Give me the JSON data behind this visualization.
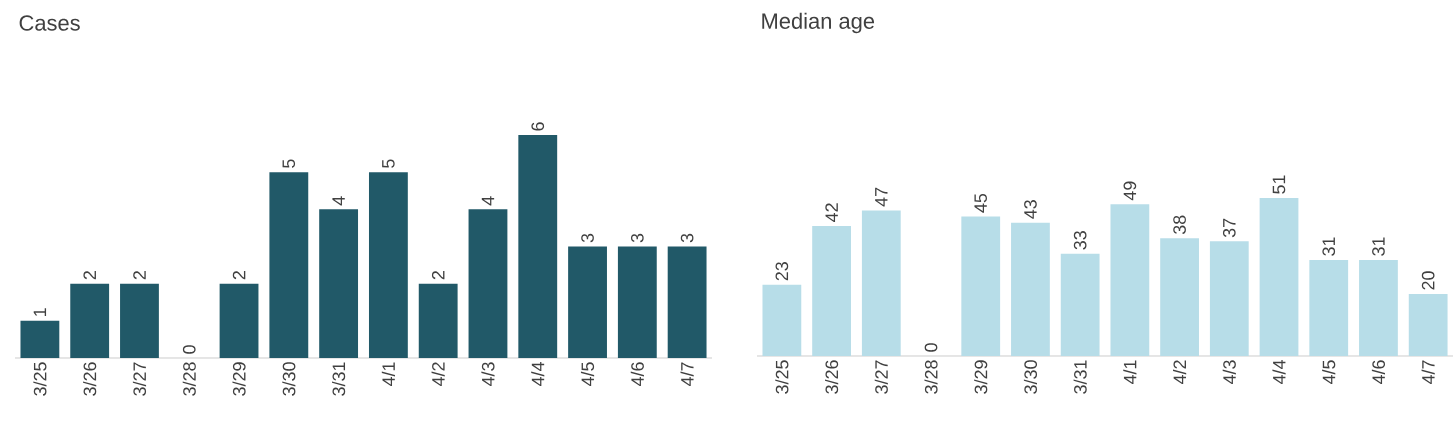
{
  "chart_data": [
    {
      "type": "bar",
      "title": "Cases",
      "categories": [
        "3/25",
        "3/26",
        "3/27",
        "3/28",
        "3/29",
        "3/30",
        "3/31",
        "4/1",
        "4/2",
        "4/3",
        "4/4",
        "4/5",
        "4/6",
        "4/7"
      ],
      "values": [
        1,
        2,
        2,
        0,
        2,
        5,
        4,
        5,
        2,
        4,
        6,
        3,
        3,
        3
      ],
      "color": "#215968",
      "data_labels": true
    },
    {
      "type": "bar",
      "title": "Median age",
      "categories": [
        "3/25",
        "3/26",
        "3/27",
        "3/28",
        "3/29",
        "3/30",
        "3/31",
        "4/1",
        "4/2",
        "4/3",
        "4/4",
        "4/5",
        "4/6",
        "4/7"
      ],
      "values": [
        23,
        42,
        47,
        0,
        45,
        43,
        33,
        49,
        38,
        37,
        51,
        31,
        31,
        20
      ],
      "color": "#b7dde8",
      "data_labels": true
    }
  ]
}
